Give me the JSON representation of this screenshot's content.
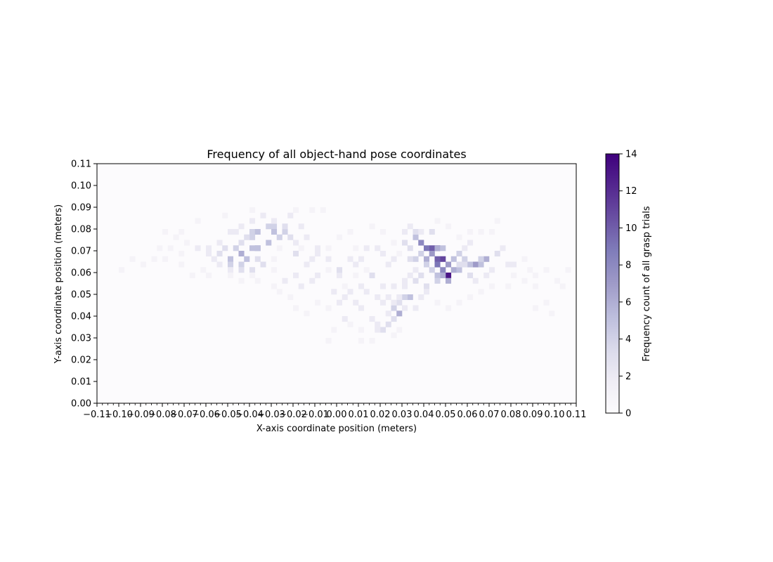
{
  "chart_data": {
    "type": "heatmap",
    "title": "Frequency of all object-hand pose coordinates",
    "xlabel": "X-axis coordinate position (meters)",
    "ylabel": "Y-axis coordinate position (meters)",
    "xlim": [
      -0.11,
      0.11
    ],
    "ylim": [
      0.0,
      0.11
    ],
    "bin_size": 0.0025,
    "x_tick_labels": [
      "−0.11",
      "−0.10",
      "−0.09",
      "−0.08",
      "−0.07",
      "−0.06",
      "−0.05",
      "−0.04",
      "−0.03",
      "−0.02",
      "−0.01",
      "0.00",
      "0.01",
      "0.02",
      "0.03",
      "0.04",
      "0.05",
      "0.06",
      "0.07",
      "0.08",
      "0.09",
      "0.10",
      "0.11"
    ],
    "y_tick_labels": [
      "0.00",
      "0.01",
      "0.02",
      "0.03",
      "0.04",
      "0.05",
      "0.06",
      "0.07",
      "0.08",
      "0.09",
      "0.10",
      "0.11"
    ],
    "colorbar": {
      "label": "Frequency count of all grasp trials",
      "range": [
        0,
        14
      ],
      "ticks": [
        "0",
        "2",
        "4",
        "6",
        "8",
        "10",
        "12",
        "14"
      ],
      "colormap": "Purples"
    },
    "cells": [
      [
        0.052,
        0.0575,
        14
      ],
      [
        0.052,
        0.0595,
        13
      ],
      [
        0.049,
        0.0655,
        11
      ],
      [
        0.045,
        0.0715,
        11
      ],
      [
        0.043,
        0.0715,
        10
      ],
      [
        0.047,
        0.067,
        10
      ],
      [
        0.041,
        0.0705,
        9
      ],
      [
        0.039,
        0.0735,
        8
      ],
      [
        0.046,
        0.0635,
        9
      ],
      [
        0.049,
        0.061,
        8
      ],
      [
        0.051,
        0.0635,
        7
      ],
      [
        0.064,
        0.063,
        7
      ],
      [
        0.069,
        0.065,
        6
      ],
      [
        0.044,
        0.068,
        7
      ],
      [
        0.042,
        0.0665,
        6
      ],
      [
        0.05,
        0.0555,
        6
      ],
      [
        0.048,
        0.0575,
        6
      ],
      [
        0.053,
        0.0615,
        6
      ],
      [
        0.057,
        0.0605,
        5
      ],
      [
        0.061,
        0.0635,
        5
      ],
      [
        0.066,
        0.064,
        5
      ],
      [
        0.067,
        0.0665,
        4
      ],
      [
        0.054,
        0.067,
        5
      ],
      [
        0.056,
        0.0685,
        4
      ],
      [
        0.059,
        0.0665,
        4
      ],
      [
        0.047,
        0.0725,
        6
      ],
      [
        0.049,
        0.0705,
        5
      ],
      [
        0.037,
        0.0755,
        5
      ],
      [
        0.036,
        0.0785,
        3
      ],
      [
        0.038,
        0.0695,
        4
      ],
      [
        0.036,
        0.0665,
        4
      ],
      [
        0.034,
        0.0655,
        3
      ],
      [
        0.04,
        0.0635,
        4
      ],
      [
        0.043,
        0.0615,
        4
      ],
      [
        0.045,
        0.0585,
        5
      ],
      [
        0.047,
        0.0555,
        4
      ],
      [
        0.038,
        0.0575,
        3
      ],
      [
        0.036,
        0.0555,
        3
      ],
      [
        0.034,
        0.0495,
        5
      ],
      [
        0.032,
        0.0475,
        4
      ],
      [
        0.029,
        0.0455,
        3
      ],
      [
        0.027,
        0.0435,
        4
      ],
      [
        0.028,
        0.0405,
        6
      ],
      [
        0.025,
        0.0385,
        3
      ],
      [
        0.023,
        0.0365,
        3
      ],
      [
        0.02,
        0.0335,
        3
      ],
      [
        0.018,
        0.0325,
        2
      ],
      [
        0.015,
        0.0385,
        2
      ],
      [
        0.012,
        0.0425,
        2
      ],
      [
        0.008,
        0.0455,
        2
      ],
      [
        0.004,
        0.0395,
        2
      ],
      [
        0.0,
        0.0455,
        2
      ],
      [
        0.002,
        0.0575,
        2
      ],
      [
        0.001,
        0.0615,
        3
      ],
      [
        0.005,
        0.0665,
        2
      ],
      [
        0.008,
        0.0635,
        2
      ],
      [
        0.012,
        0.0655,
        2
      ],
      [
        0.017,
        0.0585,
        3
      ],
      [
        0.02,
        0.0545,
        2
      ],
      [
        0.024,
        0.0495,
        2
      ],
      [
        0.027,
        0.0525,
        2
      ],
      [
        0.03,
        0.0565,
        2
      ],
      [
        0.022,
        0.0685,
        2
      ],
      [
        0.018,
        0.0725,
        2
      ],
      [
        0.013,
        0.0705,
        2
      ],
      [
        -0.005,
        0.0665,
        2
      ],
      [
        -0.008,
        0.0695,
        2
      ],
      [
        -0.012,
        0.0655,
        2
      ],
      [
        -0.015,
        0.0625,
        2
      ],
      [
        -0.018,
        0.0685,
        3
      ],
      [
        -0.02,
        0.0735,
        2
      ],
      [
        -0.022,
        0.0765,
        3
      ],
      [
        -0.025,
        0.0795,
        4
      ],
      [
        -0.024,
        0.0815,
        3
      ],
      [
        -0.028,
        0.0805,
        4
      ],
      [
        -0.03,
        0.0785,
        5
      ],
      [
        -0.027,
        0.0765,
        4
      ],
      [
        -0.032,
        0.0745,
        5
      ],
      [
        -0.035,
        0.0725,
        6
      ],
      [
        -0.037,
        0.0705,
        5
      ],
      [
        -0.038,
        0.0755,
        4
      ],
      [
        -0.04,
        0.0785,
        4
      ],
      [
        -0.035,
        0.0795,
        5
      ],
      [
        -0.032,
        0.0805,
        4
      ],
      [
        -0.04,
        0.0725,
        5
      ],
      [
        -0.043,
        0.0695,
        6
      ],
      [
        -0.041,
        0.0665,
        5
      ],
      [
        -0.045,
        0.0645,
        4
      ],
      [
        -0.048,
        0.0665,
        5
      ],
      [
        -0.05,
        0.0645,
        4
      ],
      [
        -0.053,
        0.0675,
        3
      ],
      [
        -0.051,
        0.0705,
        3
      ],
      [
        -0.047,
        0.0725,
        4
      ],
      [
        -0.045,
        0.0745,
        3
      ],
      [
        -0.042,
        0.0765,
        3
      ],
      [
        -0.036,
        0.0655,
        3
      ],
      [
        -0.033,
        0.0625,
        3
      ],
      [
        -0.038,
        0.0615,
        3
      ],
      [
        -0.044,
        0.0605,
        3
      ],
      [
        -0.05,
        0.0605,
        2
      ],
      [
        -0.055,
        0.0625,
        2
      ],
      [
        -0.057,
        0.0655,
        2
      ],
      [
        -0.06,
        0.0685,
        2
      ],
      [
        -0.058,
        0.0715,
        2
      ],
      [
        -0.055,
        0.0745,
        2
      ],
      [
        -0.05,
        0.0775,
        2
      ],
      [
        -0.046,
        0.0795,
        2
      ],
      [
        -0.043,
        0.0815,
        2
      ],
      [
        -0.038,
        0.0835,
        2
      ],
      [
        -0.033,
        0.0855,
        2
      ],
      [
        -0.028,
        0.0835,
        2
      ],
      [
        -0.022,
        0.0855,
        2
      ],
      [
        -0.017,
        0.0805,
        2
      ],
      [
        -0.013,
        0.0765,
        2
      ],
      [
        -0.01,
        0.0725,
        2
      ],
      [
        -0.008,
        0.0575,
        2
      ],
      [
        -0.012,
        0.0555,
        2
      ],
      [
        -0.016,
        0.0525,
        2
      ],
      [
        -0.02,
        0.0595,
        2
      ],
      [
        -0.024,
        0.0555,
        2
      ],
      [
        -0.065,
        0.0705,
        2
      ],
      [
        -0.068,
        0.0745,
        1
      ],
      [
        -0.072,
        0.0685,
        1
      ],
      [
        -0.075,
        0.0755,
        1
      ],
      [
        -0.078,
        0.0785,
        1
      ],
      [
        -0.082,
        0.0705,
        1
      ],
      [
        -0.085,
        0.0665,
        1
      ],
      [
        -0.09,
        0.0625,
        1
      ],
      [
        -0.062,
        0.0605,
        1
      ],
      [
        -0.066,
        0.0585,
        1
      ],
      [
        0.073,
        0.0675,
        3
      ],
      [
        0.076,
        0.0705,
        2
      ],
      [
        0.078,
        0.0645,
        2
      ],
      [
        0.082,
        0.0625,
        2
      ],
      [
        0.085,
        0.0665,
        1
      ],
      [
        0.088,
        0.0605,
        1
      ],
      [
        0.092,
        0.0575,
        1
      ],
      [
        0.096,
        0.0615,
        1
      ],
      [
        0.1,
        0.0555,
        1
      ],
      [
        0.103,
        0.0525,
        1
      ],
      [
        0.107,
        0.0605,
        1
      ],
      [
        0.071,
        0.0605,
        2
      ],
      [
        0.068,
        0.0575,
        2
      ],
      [
        0.064,
        0.0555,
        2
      ],
      [
        0.061,
        0.0595,
        3
      ],
      [
        0.058,
        0.0625,
        3
      ],
      [
        0.055,
        0.0645,
        3
      ],
      [
        0.058,
        0.0715,
        2
      ],
      [
        0.062,
        0.0745,
        2
      ],
      [
        0.066,
        0.0775,
        1
      ],
      [
        0.07,
        0.0795,
        1
      ],
      [
        0.074,
        0.0825,
        1
      ],
      [
        0.043,
        0.0775,
        3
      ],
      [
        0.039,
        0.0795,
        2
      ],
      [
        0.034,
        0.0805,
        2
      ],
      [
        0.03,
        0.0775,
        2
      ],
      [
        0.031,
        0.0735,
        3
      ],
      [
        0.033,
        0.0705,
        3
      ],
      [
        0.026,
        0.0665,
        2
      ],
      [
        0.024,
        0.0625,
        2
      ],
      [
        0.04,
        0.0545,
        3
      ],
      [
        0.042,
        0.0515,
        2
      ],
      [
        0.038,
        0.0495,
        2
      ],
      [
        0.035,
        0.0445,
        2
      ],
      [
        0.031,
        0.0425,
        2
      ],
      [
        0.022,
        0.0455,
        2
      ],
      [
        0.018,
        0.0475,
        2
      ],
      [
        0.014,
        0.0505,
        2
      ],
      [
        0.01,
        0.0535,
        2
      ],
      [
        0.006,
        0.0505,
        2
      ],
      [
        0.003,
        0.0475,
        2
      ],
      [
        -0.002,
        0.0505,
        2
      ],
      [
        -0.005,
        0.0435,
        1
      ],
      [
        -0.01,
        0.0465,
        1
      ],
      [
        -0.014,
        0.0415,
        1
      ],
      [
        -0.018,
        0.0445,
        1
      ],
      [
        -0.022,
        0.0485,
        1
      ],
      [
        -0.026,
        0.0505,
        1
      ],
      [
        0.007,
        0.0355,
        1
      ],
      [
        0.011,
        0.0325,
        1
      ],
      [
        0.016,
        0.0295,
        1
      ],
      [
        0.019,
        0.0365,
        2
      ],
      [
        0.023,
        0.0415,
        2
      ],
      [
        -0.001,
        0.0335,
        1
      ],
      [
        -0.004,
        0.0285,
        1
      ],
      [
        0.01,
        0.0275,
        1
      ],
      [
        0.025,
        0.0315,
        1
      ],
      [
        0.028,
        0.0345,
        1
      ],
      [
        -0.02,
        0.0895,
        1
      ],
      [
        -0.012,
        0.0875,
        1
      ],
      [
        -0.007,
        0.0885,
        1
      ],
      [
        -0.04,
        0.0875,
        1
      ],
      [
        -0.052,
        0.0855,
        1
      ],
      [
        -0.065,
        0.0825,
        1
      ],
      [
        -0.07,
        0.0795,
        1
      ],
      [
        0.002,
        0.0755,
        1
      ],
      [
        0.007,
        0.0785,
        1
      ],
      [
        0.015,
        0.0805,
        1
      ],
      [
        0.02,
        0.0775,
        1
      ],
      [
        0.055,
        0.0765,
        1
      ],
      [
        0.06,
        0.0795,
        1
      ],
      [
        0.045,
        0.0825,
        1
      ],
      [
        0.05,
        0.0805,
        1
      ],
      [
        0.08,
        0.0575,
        1
      ],
      [
        0.085,
        0.0555,
        1
      ],
      [
        0.09,
        0.0525,
        1
      ],
      [
        0.095,
        0.0455,
        1
      ],
      [
        0.098,
        0.0415,
        1
      ],
      [
        0.09,
        0.0435,
        1
      ],
      [
        0.078,
        0.0545,
        1
      ],
      [
        0.072,
        0.0525,
        1
      ],
      [
        0.065,
        0.0515,
        1
      ],
      [
        0.06,
        0.0485,
        1
      ],
      [
        0.055,
        0.0465,
        1
      ],
      [
        0.05,
        0.0425,
        1
      ],
      [
        0.046,
        0.0465,
        1
      ],
      [
        -0.03,
        0.0545,
        1
      ],
      [
        -0.035,
        0.0565,
        1
      ],
      [
        -0.04,
        0.0575,
        1
      ],
      [
        -0.045,
        0.0565,
        1
      ],
      [
        -0.05,
        0.0575,
        1
      ],
      [
        -0.058,
        0.0575,
        1
      ],
      [
        -0.07,
        0.0645,
        1
      ],
      [
        -0.077,
        0.0725,
        1
      ],
      [
        -0.08,
        0.0665,
        1
      ],
      [
        -0.095,
        0.0655,
        1
      ],
      [
        -0.098,
        0.0615,
        1
      ],
      [
        -0.003,
        0.0705,
        1
      ],
      [
        0.009,
        0.0725,
        1
      ],
      [
        0.026,
        0.0745,
        1
      ],
      [
        0.028,
        0.0695,
        1
      ],
      [
        0.014,
        0.0605,
        1
      ],
      [
        0.009,
        0.0575,
        1
      ],
      [
        0.004,
        0.0545,
        1
      ],
      [
        -0.004,
        0.0605,
        1
      ],
      [
        -0.016,
        0.0705,
        1
      ],
      [
        -0.026,
        0.0705,
        1
      ],
      [
        -0.028,
        0.0655,
        1
      ],
      [
        -0.03,
        0.0605,
        1
      ],
      [
        0.036,
        0.0605,
        2
      ],
      [
        0.033,
        0.0585,
        2
      ],
      [
        0.031,
        0.0535,
        2
      ],
      [
        0.029,
        0.0495,
        2
      ],
      [
        0.026,
        0.0465,
        2
      ]
    ]
  }
}
